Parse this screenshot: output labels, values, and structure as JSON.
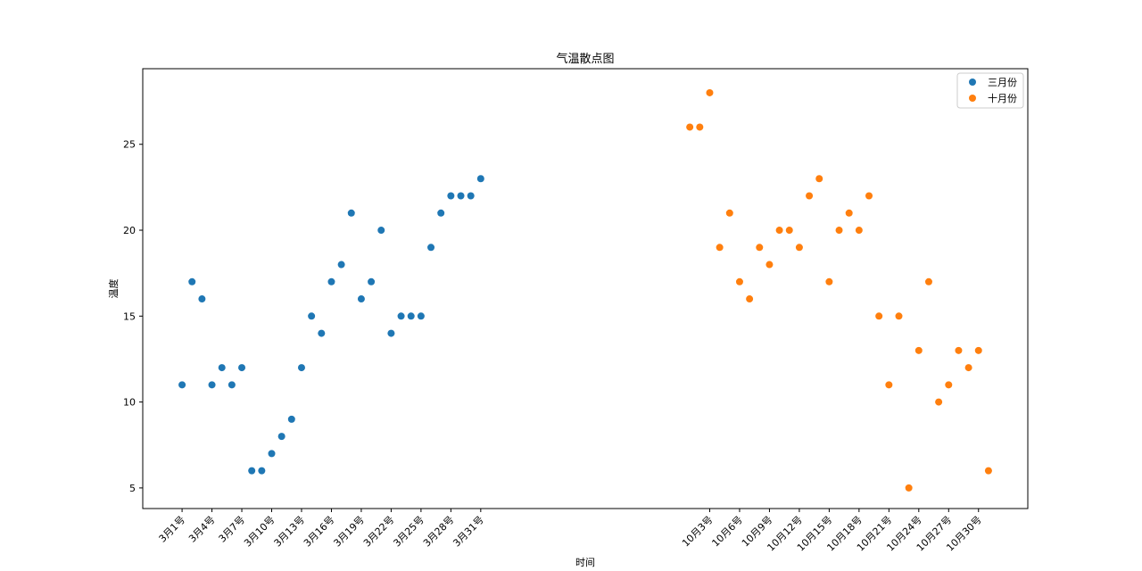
{
  "chart_data": {
    "type": "scatter",
    "title": "气温散点图",
    "xlabel": "时间",
    "ylabel": "温度",
    "ylim": [
      3.8,
      29.4
    ],
    "yticks": [
      5,
      10,
      15,
      20,
      25
    ],
    "grid": false,
    "legend_position": "top-right",
    "series": [
      {
        "name": "三月份",
        "color": "#1f77b4",
        "x": [
          1,
          2,
          3,
          4,
          5,
          6,
          7,
          8,
          9,
          10,
          11,
          12,
          13,
          14,
          15,
          16,
          17,
          18,
          19,
          20,
          21,
          22,
          23,
          24,
          25,
          26,
          27,
          28,
          29,
          30,
          31
        ],
        "y": [
          11,
          17,
          16,
          11,
          12,
          11,
          12,
          6,
          6,
          7,
          8,
          9,
          12,
          15,
          14,
          17,
          18,
          21,
          16,
          17,
          20,
          14,
          15,
          15,
          15,
          19,
          21,
          22,
          22,
          22,
          23
        ]
      },
      {
        "name": "十月份",
        "color": "#ff7f0e",
        "x": [
          52,
          53,
          54,
          55,
          56,
          57,
          58,
          59,
          60,
          61,
          62,
          63,
          64,
          65,
          66,
          67,
          68,
          69,
          70,
          71,
          72,
          73,
          74,
          75,
          76,
          77,
          78,
          79,
          80,
          81,
          82
        ],
        "y": [
          26,
          26,
          28,
          19,
          21,
          17,
          16,
          19,
          18,
          20,
          20,
          19,
          22,
          23,
          17,
          20,
          21,
          20,
          22,
          15,
          11,
          15,
          5,
          13,
          17,
          10,
          11,
          13,
          12,
          13,
          6
        ]
      }
    ],
    "xticks": [
      {
        "x": 1,
        "label": "3月1号"
      },
      {
        "x": 4,
        "label": "3月4号"
      },
      {
        "x": 7,
        "label": "3月7号"
      },
      {
        "x": 10,
        "label": "3月10号"
      },
      {
        "x": 13,
        "label": "3月13号"
      },
      {
        "x": 16,
        "label": "3月16号"
      },
      {
        "x": 19,
        "label": "3月19号"
      },
      {
        "x": 22,
        "label": "3月22号"
      },
      {
        "x": 25,
        "label": "3月25号"
      },
      {
        "x": 28,
        "label": "3月28号"
      },
      {
        "x": 31,
        "label": "3月31号"
      },
      {
        "x": 54,
        "label": "10月3号"
      },
      {
        "x": 57,
        "label": "10月6号"
      },
      {
        "x": 60,
        "label": "10月9号"
      },
      {
        "x": 63,
        "label": "10月12号"
      },
      {
        "x": 66,
        "label": "10月15号"
      },
      {
        "x": 69,
        "label": "10月18号"
      },
      {
        "x": 72,
        "label": "10月21号"
      },
      {
        "x": 75,
        "label": "10月24号"
      },
      {
        "x": 78,
        "label": "10月27号"
      },
      {
        "x": 81,
        "label": "10月30号"
      }
    ],
    "xlim": [
      -2.95,
      85.95
    ]
  }
}
